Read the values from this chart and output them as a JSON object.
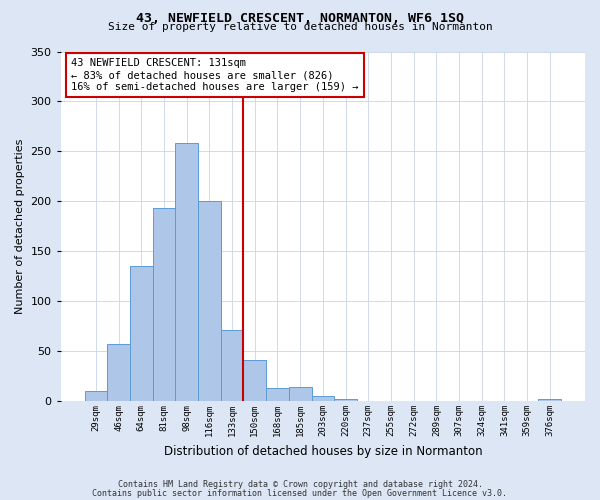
{
  "title": "43, NEWFIELD CRESCENT, NORMANTON, WF6 1SQ",
  "subtitle": "Size of property relative to detached houses in Normanton",
  "xlabel": "Distribution of detached houses by size in Normanton",
  "ylabel": "Number of detached properties",
  "footnote1": "Contains HM Land Registry data © Crown copyright and database right 2024.",
  "footnote2": "Contains public sector information licensed under the Open Government Licence v3.0.",
  "bar_labels": [
    "29sqm",
    "46sqm",
    "64sqm",
    "81sqm",
    "98sqm",
    "116sqm",
    "133sqm",
    "150sqm",
    "168sqm",
    "185sqm",
    "203sqm",
    "220sqm",
    "237sqm",
    "255sqm",
    "272sqm",
    "289sqm",
    "307sqm",
    "324sqm",
    "341sqm",
    "359sqm",
    "376sqm"
  ],
  "bar_values": [
    10,
    57,
    135,
    193,
    258,
    200,
    71,
    41,
    13,
    14,
    5,
    2,
    0,
    0,
    0,
    0,
    0,
    0,
    0,
    0,
    2
  ],
  "bar_color": "#aec6e8",
  "bar_edge_color": "#5b9bd5",
  "vline_index": 6,
  "vline_color": "#cc0000",
  "annotation_title": "43 NEWFIELD CRESCENT: 131sqm",
  "annotation_line2": "← 83% of detached houses are smaller (826)",
  "annotation_line3": "16% of semi-detached houses are larger (159) →",
  "annotation_box_color": "#ffffff",
  "annotation_edge_color": "#cc0000",
  "ylim": [
    0,
    350
  ],
  "yticks": [
    0,
    50,
    100,
    150,
    200,
    250,
    300,
    350
  ],
  "background_color": "#dce6f5",
  "plot_background": "#ffffff"
}
